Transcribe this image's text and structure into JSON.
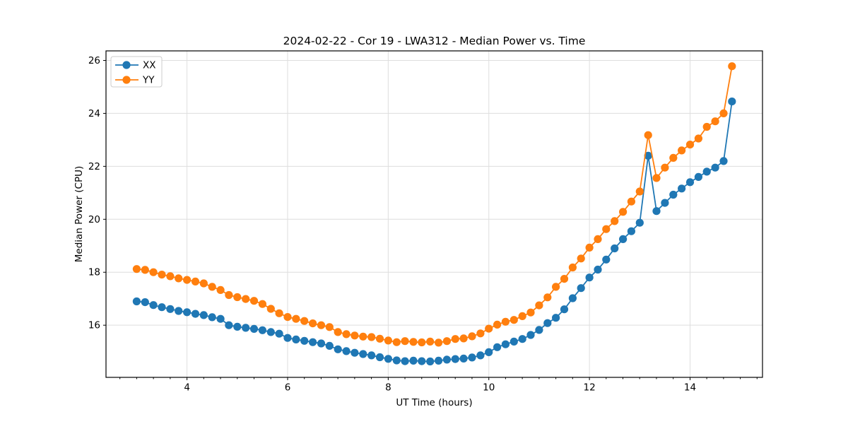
{
  "figure": {
    "background": "#ffffff",
    "spine_color": "#000000",
    "grid_color": "#dedede"
  },
  "chart_data": {
    "type": "line",
    "title": "2024-02-22 - Cor 19 - LWA312 - Median Power vs. Time",
    "xlabel": "UT Time (hours)",
    "ylabel": "Median Power (CPU)",
    "xlim": [
      2.39,
      15.44
    ],
    "ylim": [
      14.03,
      26.36
    ],
    "xticks": [
      4,
      6,
      8,
      10,
      12,
      14
    ],
    "yticks": [
      16,
      18,
      20,
      22,
      24,
      26
    ],
    "x_minor_tick_step": 0.3333,
    "grid": true,
    "legend_position": "upper-left",
    "marker": "circle",
    "x": [
      3.0,
      3.167,
      3.333,
      3.5,
      3.667,
      3.833,
      4.0,
      4.167,
      4.333,
      4.5,
      4.667,
      4.833,
      5.0,
      5.167,
      5.333,
      5.5,
      5.667,
      5.833,
      6.0,
      6.167,
      6.333,
      6.5,
      6.667,
      6.833,
      7.0,
      7.167,
      7.333,
      7.5,
      7.667,
      7.833,
      8.0,
      8.167,
      8.333,
      8.5,
      8.667,
      8.833,
      9.0,
      9.167,
      9.333,
      9.5,
      9.667,
      9.833,
      10.0,
      10.167,
      10.333,
      10.5,
      10.667,
      10.833,
      11.0,
      11.167,
      11.333,
      11.5,
      11.667,
      11.833,
      12.0,
      12.167,
      12.333,
      12.5,
      12.667,
      12.833,
      13.0,
      13.167,
      13.333,
      13.5,
      13.667,
      13.833,
      14.0,
      14.167,
      14.333,
      14.5,
      14.667,
      14.833
    ],
    "series": [
      {
        "name": "XX",
        "color": "#1f77b4",
        "values": [
          16.9,
          16.87,
          16.76,
          16.68,
          16.61,
          16.54,
          16.49,
          16.43,
          16.38,
          16.3,
          16.24,
          16.0,
          15.94,
          15.9,
          15.86,
          15.81,
          15.74,
          15.68,
          15.52,
          15.46,
          15.41,
          15.36,
          15.31,
          15.22,
          15.09,
          15.02,
          14.96,
          14.91,
          14.86,
          14.79,
          14.73,
          14.67,
          14.64,
          14.66,
          14.64,
          14.63,
          14.66,
          14.7,
          14.72,
          14.74,
          14.78,
          14.86,
          14.98,
          15.17,
          15.28,
          15.38,
          15.48,
          15.63,
          15.82,
          16.08,
          16.28,
          16.6,
          17.02,
          17.4,
          17.8,
          18.1,
          18.48,
          18.9,
          19.25,
          19.55,
          19.87,
          22.4,
          20.31,
          20.62,
          20.93,
          21.16,
          21.4,
          21.6,
          21.8,
          21.95,
          22.2,
          24.45
        ]
      },
      {
        "name": "YY",
        "color": "#ff7f0e",
        "values": [
          18.12,
          18.09,
          18.0,
          17.91,
          17.85,
          17.77,
          17.71,
          17.65,
          17.58,
          17.45,
          17.33,
          17.14,
          17.06,
          16.99,
          16.92,
          16.8,
          16.62,
          16.45,
          16.31,
          16.24,
          16.16,
          16.07,
          16.0,
          15.93,
          15.74,
          15.66,
          15.61,
          15.57,
          15.55,
          15.49,
          15.42,
          15.36,
          15.4,
          15.37,
          15.35,
          15.38,
          15.34,
          15.4,
          15.48,
          15.5,
          15.58,
          15.69,
          15.87,
          16.02,
          16.13,
          16.2,
          16.34,
          16.48,
          16.75,
          17.05,
          17.45,
          17.75,
          18.18,
          18.52,
          18.93,
          19.25,
          19.63,
          19.93,
          20.28,
          20.67,
          21.05,
          23.18,
          21.56,
          21.95,
          22.32,
          22.6,
          22.82,
          23.05,
          23.49,
          23.7,
          24.0,
          25.78
        ]
      }
    ]
  }
}
